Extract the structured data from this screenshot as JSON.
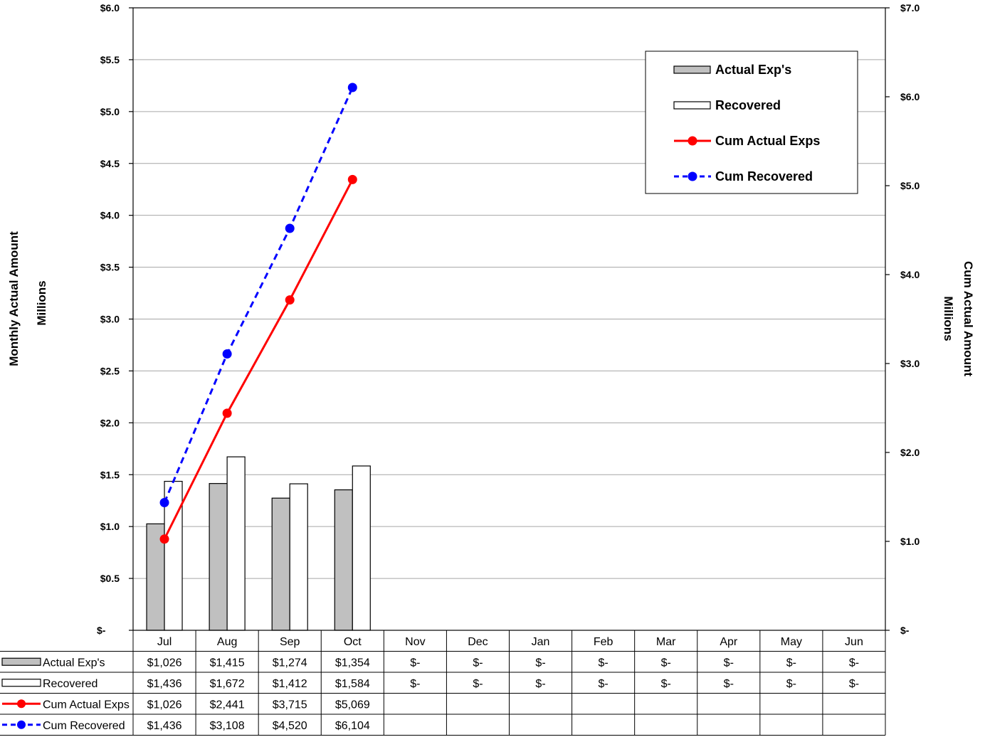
{
  "chart_data": {
    "type": "bar",
    "categories": [
      "Jul",
      "Aug",
      "Sep",
      "Oct",
      "Nov",
      "Dec",
      "Jan",
      "Feb",
      "Mar",
      "Apr",
      "May",
      "Jun"
    ],
    "series": [
      {
        "name": "Actual Exp's",
        "type": "bar",
        "axis": "left",
        "color": "#c0c0c0",
        "values": [
          1.026,
          1.415,
          1.274,
          1.354,
          null,
          null,
          null,
          null,
          null,
          null,
          null,
          null
        ]
      },
      {
        "name": "Recovered",
        "type": "bar",
        "axis": "left",
        "color": "#ffffff",
        "values": [
          1.436,
          1.672,
          1.412,
          1.584,
          null,
          null,
          null,
          null,
          null,
          null,
          null,
          null
        ]
      },
      {
        "name": "Cum Actual Exps",
        "type": "line",
        "axis": "right",
        "color": "#ff0000",
        "style": "solid",
        "values": [
          1.026,
          2.441,
          3.715,
          5.069,
          null,
          null,
          null,
          null,
          null,
          null,
          null,
          null
        ]
      },
      {
        "name": "Cum Recovered",
        "type": "line",
        "axis": "right",
        "color": "#0000ff",
        "style": "dashed",
        "values": [
          1.436,
          3.108,
          4.52,
          6.104,
          null,
          null,
          null,
          null,
          null,
          null,
          null,
          null
        ]
      }
    ],
    "y_left": {
      "label": [
        "Monthly Actual Amount",
        "Millions"
      ],
      "ylim": [
        0,
        6
      ],
      "ticks": [
        0,
        0.5,
        1,
        1.5,
        2,
        2.5,
        3,
        3.5,
        4,
        4.5,
        5,
        5.5,
        6
      ],
      "tick_labels": [
        "$-",
        "$0.5",
        "$1.0",
        "$1.5",
        "$2.0",
        "$2.5",
        "$3.0",
        "$3.5",
        "$4.0",
        "$4.5",
        "$5.0",
        "$5.5",
        "$6.0"
      ]
    },
    "y_right": {
      "label": [
        "Cum Actual Amount",
        "Millions"
      ],
      "ylim": [
        0,
        7
      ],
      "ticks": [
        0,
        1,
        2,
        3,
        4,
        5,
        6,
        7
      ],
      "tick_labels": [
        "$-",
        "$1.0",
        "$2.0",
        "$3.0",
        "$4.0",
        "$5.0",
        "$6.0",
        "$7.0"
      ]
    },
    "grid": true,
    "legend": "top-right",
    "data_table": {
      "rows": [
        {
          "name": "Actual Exp's",
          "cells": [
            "$1,026",
            "$1,415",
            "$1,274",
            "$1,354",
            "$-",
            "$-",
            "$-",
            "$-",
            "$-",
            "$-",
            "$-",
            "$-"
          ]
        },
        {
          "name": "Recovered",
          "cells": [
            "$1,436",
            "$1,672",
            "$1,412",
            "$1,584",
            "$-",
            "$-",
            "$-",
            "$-",
            "$-",
            "$-",
            "$-",
            "$-"
          ]
        },
        {
          "name": "Cum Actual Exps",
          "cells": [
            "$1,026",
            "$2,441",
            "$3,715",
            "$5,069",
            "",
            "",
            "",
            "",
            "",
            "",
            "",
            ""
          ]
        },
        {
          "name": "Cum Recovered",
          "cells": [
            "$1,436",
            "$3,108",
            "$4,520",
            "$6,104",
            "",
            "",
            "",
            "",
            "",
            "",
            "",
            ""
          ]
        }
      ]
    }
  }
}
